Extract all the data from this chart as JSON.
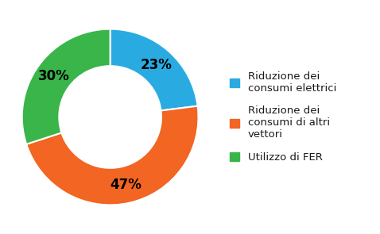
{
  "values": [
    23,
    47,
    30
  ],
  "colors": [
    "#29ABE2",
    "#F26522",
    "#39B54A"
  ],
  "labels": [
    "23%",
    "47%",
    "30%"
  ],
  "legend_labels": [
    "Riduzione dei\nconsumi elettrici",
    "Riduzione dei\nconsumi di altri\nvettori",
    "Utilizzo di FER"
  ],
  "donut_width": 0.42,
  "label_fontsize": 12,
  "legend_fontsize": 9.5,
  "background_color": "#ffffff"
}
